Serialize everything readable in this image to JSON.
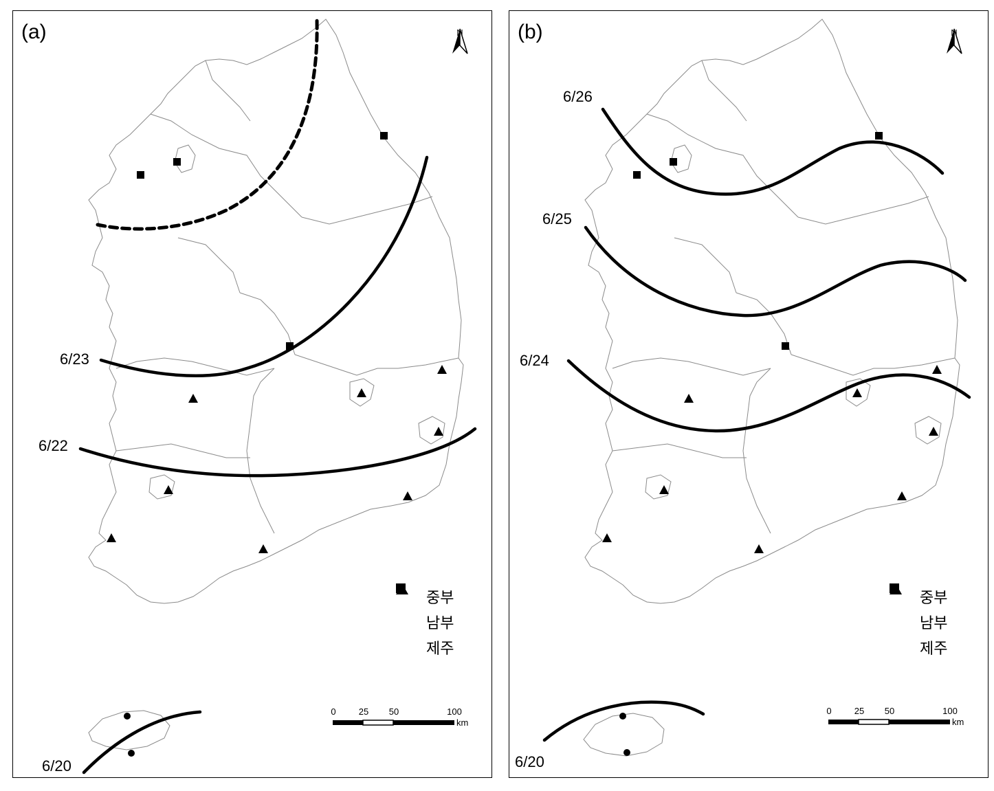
{
  "panels": [
    {
      "id": "a",
      "label": "(a)",
      "north_label": "N",
      "isochrones": [
        {
          "label": "6/23",
          "date": "6/23",
          "style": "solid"
        },
        {
          "label": "6/22",
          "date": "6/22",
          "style": "solid"
        },
        {
          "label": "6/20",
          "date": "6/20",
          "style": "solid"
        },
        {
          "label": "",
          "date": "",
          "style": "dashed"
        }
      ],
      "legend": [
        {
          "symbol": "square",
          "label": "중부"
        },
        {
          "symbol": "triangle",
          "label": "남부"
        },
        {
          "symbol": "circle",
          "label": "제주"
        }
      ],
      "scale": {
        "ticks": [
          "0",
          "25",
          "50",
          "100"
        ],
        "unit": "km"
      }
    },
    {
      "id": "b",
      "label": "(b)",
      "north_label": "N",
      "isochrones": [
        {
          "label": "6/26",
          "date": "6/26",
          "style": "solid"
        },
        {
          "label": "6/25",
          "date": "6/25",
          "style": "solid"
        },
        {
          "label": "6/24",
          "date": "6/24",
          "style": "solid"
        },
        {
          "label": "6/20",
          "date": "6/20",
          "style": "solid"
        }
      ],
      "legend": [
        {
          "symbol": "square",
          "label": "중부"
        },
        {
          "symbol": "triangle",
          "label": "남부"
        },
        {
          "symbol": "circle",
          "label": "제주"
        }
      ],
      "scale": {
        "ticks": [
          "0",
          "25",
          "50",
          "100"
        ],
        "unit": "km"
      }
    }
  ],
  "colors": {
    "ink": "#000000",
    "boundary": "#8a8a8a",
    "background": "#ffffff"
  }
}
